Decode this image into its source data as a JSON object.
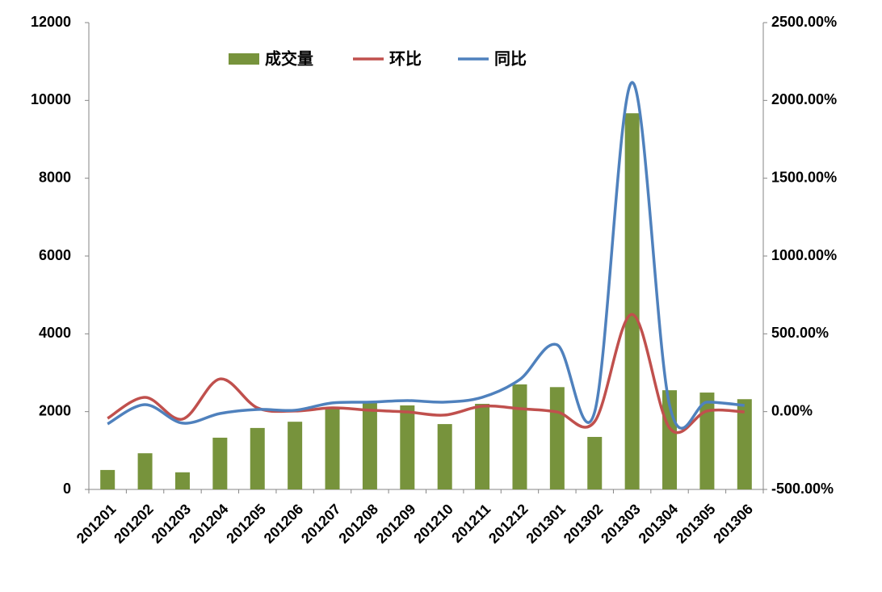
{
  "chart_data": {
    "type": "bar-line",
    "categories": [
      "201201",
      "201202",
      "201203",
      "201204",
      "201205",
      "201206",
      "201207",
      "201208",
      "201209",
      "201210",
      "201211",
      "201212",
      "201301",
      "201302",
      "201303",
      "201304",
      "201305",
      "201306"
    ],
    "series": [
      {
        "name": "成交量",
        "type": "bar",
        "color": "#77933c",
        "values": [
          500,
          930,
          440,
          1330,
          1580,
          1740,
          2100,
          2260,
          2160,
          1680,
          2200,
          2700,
          2630,
          1350,
          9670,
          2550,
          2490,
          2320
        ]
      },
      {
        "name": "环比",
        "type": "line",
        "axis": "y2",
        "color": "#c0504d",
        "values": [
          -43,
          92,
          -48,
          210,
          24,
          4,
          24,
          9,
          -2,
          -22,
          35,
          19,
          -2,
          -64,
          625,
          -105,
          4,
          -2
        ]
      },
      {
        "name": "同比",
        "type": "line",
        "axis": "y2",
        "color": "#4f81bd",
        "values": [
          -79,
          45,
          -74,
          -12,
          14,
          9,
          56,
          61,
          71,
          61,
          92,
          206,
          429,
          -2,
          2116,
          40,
          61,
          40
        ]
      }
    ],
    "ylim": [
      0,
      12000
    ],
    "yticks": [
      0,
      2000,
      4000,
      6000,
      8000,
      10000,
      12000
    ],
    "y2lim": [
      -500,
      2500
    ],
    "y2ticks": [
      {
        "value": -500,
        "label": "-500.00%"
      },
      {
        "value": 0,
        "label": "0.00%"
      },
      {
        "value": 500,
        "label": "500.00%"
      },
      {
        "value": 1000,
        "label": "1000.00%"
      },
      {
        "value": 1500,
        "label": "1500.00%"
      },
      {
        "value": 2000,
        "label": "2000.00%"
      },
      {
        "value": 2500,
        "label": "2500.00%"
      }
    ],
    "legend": "top",
    "smooth": true
  }
}
